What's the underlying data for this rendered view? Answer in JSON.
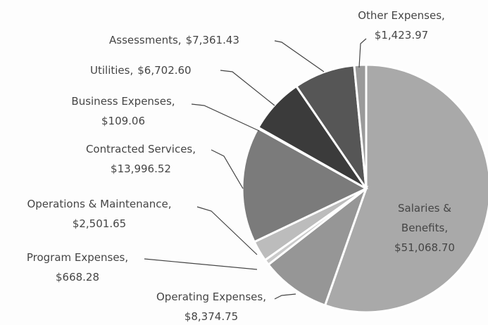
{
  "chart_data": {
    "type": "pie",
    "categories": [
      "Salaries & Benefits",
      "Operating Expenses",
      "Program Expenses",
      "Operations & Maintenance",
      "Contracted Services",
      "Business Expenses",
      "Utilities",
      "Assessments",
      "Other Expenses"
    ],
    "values": [
      51068.7,
      8374.75,
      668.28,
      2501.65,
      13996.52,
      109.06,
      6702.6,
      7361.43,
      1423.97
    ],
    "value_labels": [
      "$51,068.70",
      "$8,374.75",
      "$668.28",
      "$2,501.65",
      "$13,996.52",
      "$109.06",
      "$6,702.60",
      "$7,361.43",
      "$1,423.97"
    ],
    "colors": [
      "#a9a9a9",
      "#969696",
      "#cacaca",
      "#bcbcbc",
      "#7b7b7b",
      "#454545",
      "#3b3b3b",
      "#565656",
      "#9a9a9a"
    ]
  }
}
